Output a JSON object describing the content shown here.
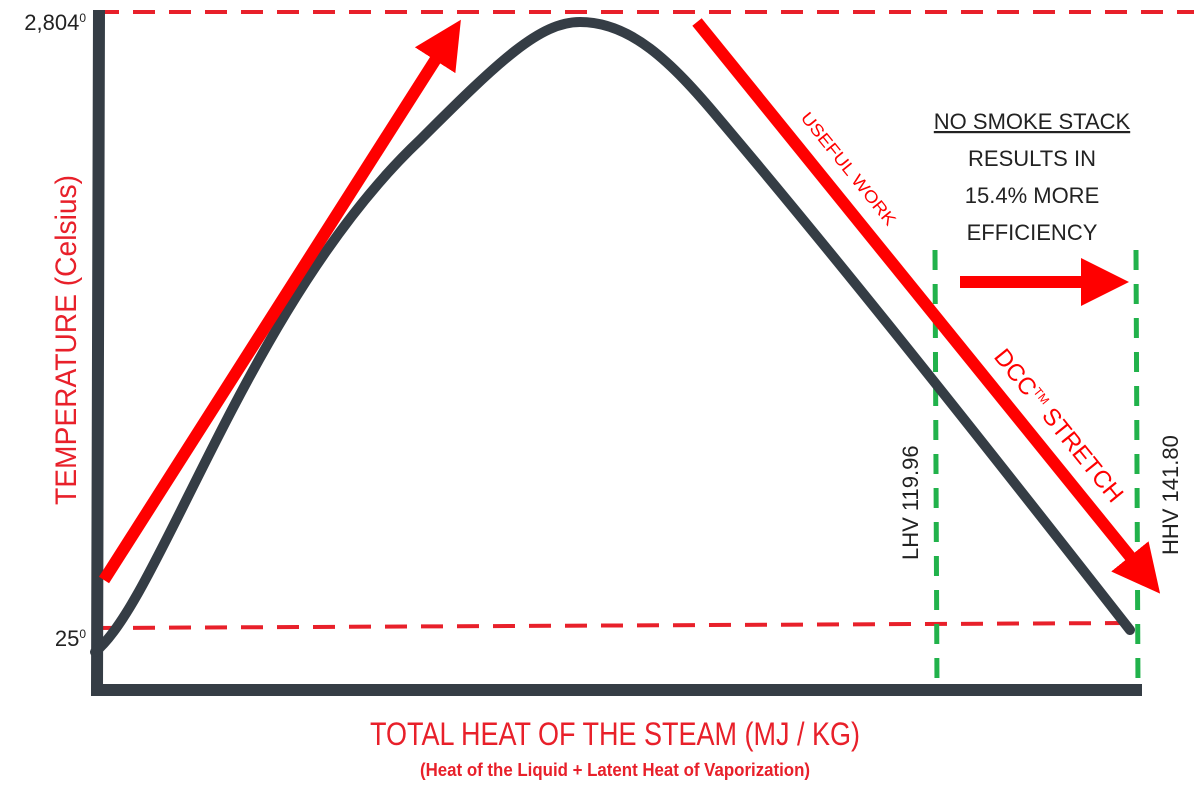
{
  "axes": {
    "y_label": "TEMPERATURE (Celsius)",
    "y_top": {
      "text": "2,804",
      "sup": "0"
    },
    "y_bottom": {
      "text": "25",
      "sup": "0"
    },
    "x_label": "TOTAL HEAT OF THE STEAM (MJ / KG)",
    "x_sublabel": "(Heat of the Liquid + Latent Heat of Vaporization)"
  },
  "annotations": {
    "useful_work": "USEFUL WORK",
    "dcc": {
      "text": "DCC",
      "sup": "TM",
      "rest": " STRETCH"
    },
    "note": [
      "NO SMOKE STACK",
      "RESULTS IN",
      "15.4% MORE",
      "EFFICIENCY"
    ],
    "lhv": "LHV 119.96",
    "hhv": "HHV 141.80"
  }
}
